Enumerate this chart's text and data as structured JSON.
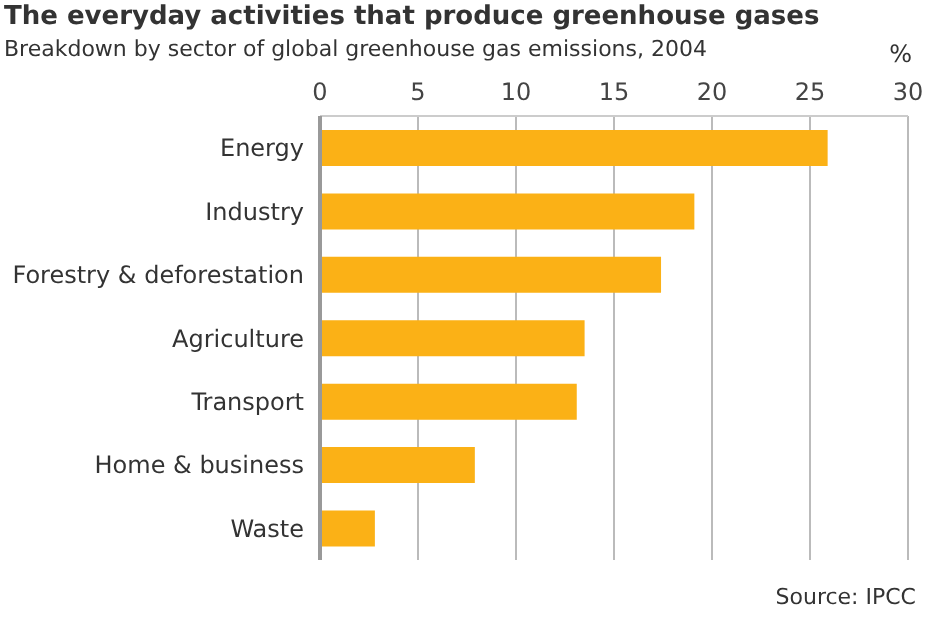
{
  "chart_data": {
    "type": "bar",
    "orientation": "horizontal",
    "title": "The everyday activities that produce greenhouse gases",
    "subtitle": "Breakdown by sector of global greenhouse gas emissions, 2004",
    "xlabel": "%",
    "categories": [
      "Energy",
      "Industry",
      "Forestry & deforestation",
      "Agriculture",
      "Transport",
      "Home & business",
      "Waste"
    ],
    "values": [
      25.9,
      19.1,
      17.4,
      13.5,
      13.1,
      7.9,
      2.8
    ],
    "color": "#fbb116",
    "xlim": [
      0,
      30
    ],
    "xticks": [
      0,
      5,
      10,
      15,
      20,
      25,
      30
    ],
    "grid": "x",
    "legend": false,
    "annotations": [
      "Source: IPCC"
    ]
  }
}
